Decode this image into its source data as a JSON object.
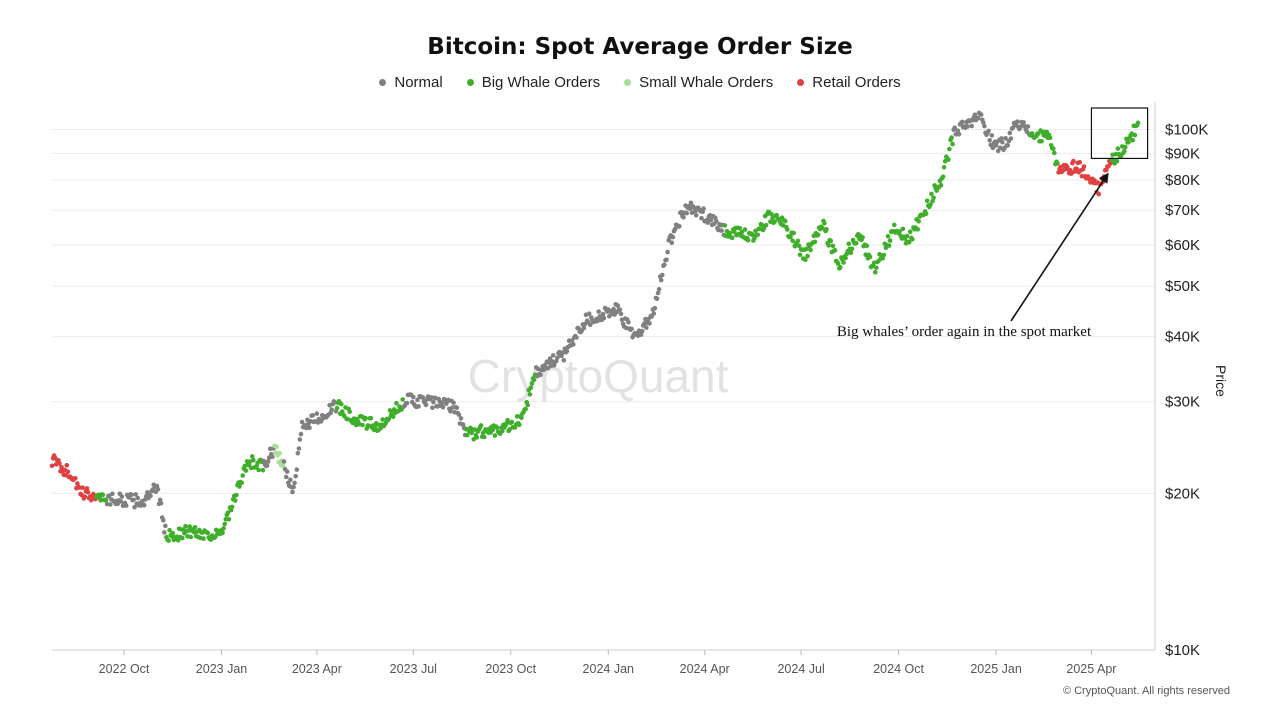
{
  "chart_data": {
    "type": "scatter",
    "title": "Bitcoin: Spot Average Order Size",
    "ylabel": "Price",
    "yscale": "log",
    "ylim": [
      10000,
      110000
    ],
    "xlim": [
      "2022-07-25",
      "2025-05-31"
    ],
    "x_ticks": [
      {
        "date": "2022-10-01",
        "label": "2022 Oct"
      },
      {
        "date": "2023-01-01",
        "label": "2023 Jan"
      },
      {
        "date": "2023-04-01",
        "label": "2023 Apr"
      },
      {
        "date": "2023-07-01",
        "label": "2023 Jul"
      },
      {
        "date": "2023-10-01",
        "label": "2023 Oct"
      },
      {
        "date": "2024-01-01",
        "label": "2024 Jan"
      },
      {
        "date": "2024-04-01",
        "label": "2024 Apr"
      },
      {
        "date": "2024-07-01",
        "label": "2024 Jul"
      },
      {
        "date": "2024-10-01",
        "label": "2024 Oct"
      },
      {
        "date": "2025-01-01",
        "label": "2025 Jan"
      },
      {
        "date": "2025-04-01",
        "label": "2025 Apr"
      }
    ],
    "y_ticks": [
      {
        "value": 10000,
        "label": "$10K"
      },
      {
        "value": 20000,
        "label": "$20K"
      },
      {
        "value": 30000,
        "label": "$30K"
      },
      {
        "value": 40000,
        "label": "$40K"
      },
      {
        "value": 50000,
        "label": "$50K"
      },
      {
        "value": 60000,
        "label": "$60K"
      },
      {
        "value": 70000,
        "label": "$70K"
      },
      {
        "value": 80000,
        "label": "$80K"
      },
      {
        "value": 90000,
        "label": "$90K"
      },
      {
        "value": 100000,
        "label": "$100K"
      }
    ],
    "legend_position": "top-center",
    "grid": true,
    "series": [
      {
        "name": "Normal",
        "color": "#808080"
      },
      {
        "name": "Big Whale Orders",
        "color": "#3fae2a"
      },
      {
        "name": "Small Whale Orders",
        "color": "#a6e09a"
      },
      {
        "name": "Retail Orders",
        "color": "#e04040"
      }
    ],
    "segments": [
      [
        "2022-07-25",
        23200,
        "Retail Orders"
      ],
      [
        "2022-08-15",
        21500,
        "Retail Orders"
      ],
      [
        "2022-08-20",
        20000,
        "Retail Orders"
      ],
      [
        "2022-09-05",
        19800,
        "Big Whale Orders"
      ],
      [
        "2022-09-15",
        19500,
        "Normal"
      ],
      [
        "2022-10-20",
        19300,
        "Normal"
      ],
      [
        "2022-11-01",
        20500,
        "Normal"
      ],
      [
        "2022-11-10",
        16500,
        "Big Whale Orders"
      ],
      [
        "2022-12-01",
        16900,
        "Big Whale Orders"
      ],
      [
        "2022-12-31",
        16600,
        "Big Whale Orders"
      ],
      [
        "2023-01-12",
        19000,
        "Big Whale Orders"
      ],
      [
        "2023-01-20",
        21500,
        "Big Whale Orders"
      ],
      [
        "2023-01-28",
        23000,
        "Big Whale Orders"
      ],
      [
        "2023-02-10",
        22500,
        "Normal"
      ],
      [
        "2023-02-20",
        24500,
        "Small Whale Orders"
      ],
      [
        "2023-03-01",
        22500,
        "Normal"
      ],
      [
        "2023-03-10",
        20000,
        "Normal"
      ],
      [
        "2023-03-18",
        27000,
        "Normal"
      ],
      [
        "2023-04-10",
        28500,
        "Normal"
      ],
      [
        "2023-04-20",
        29500,
        "Big Whale Orders"
      ],
      [
        "2023-05-10",
        27500,
        "Big Whale Orders"
      ],
      [
        "2023-06-01",
        26800,
        "Big Whale Orders"
      ],
      [
        "2023-06-22",
        30200,
        "Normal"
      ],
      [
        "2023-07-15",
        30000,
        "Normal"
      ],
      [
        "2023-08-10",
        29300,
        "Normal"
      ],
      [
        "2023-08-20",
        26000,
        "Big Whale Orders"
      ],
      [
        "2023-09-15",
        26500,
        "Big Whale Orders"
      ],
      [
        "2023-10-10",
        27500,
        "Big Whale Orders"
      ],
      [
        "2023-10-25",
        34000,
        "Normal"
      ],
      [
        "2023-11-20",
        37000,
        "Normal"
      ],
      [
        "2023-12-10",
        43000,
        "Normal"
      ],
      [
        "2024-01-10",
        45000,
        "Normal"
      ],
      [
        "2024-01-25",
        40000,
        "Normal"
      ],
      [
        "2024-02-10",
        43000,
        "Normal"
      ],
      [
        "2024-02-28",
        61000,
        "Normal"
      ],
      [
        "2024-03-14",
        71000,
        "Normal"
      ],
      [
        "2024-04-05",
        68000,
        "Normal"
      ],
      [
        "2024-04-20",
        64000,
        "Big Whale Orders"
      ],
      [
        "2024-05-15",
        62000,
        "Big Whale Orders"
      ],
      [
        "2024-06-01",
        68000,
        "Big Whale Orders"
      ],
      [
        "2024-06-15",
        66000,
        "Big Whale Orders"
      ],
      [
        "2024-07-05",
        57000,
        "Big Whale Orders"
      ],
      [
        "2024-07-20",
        66500,
        "Big Whale Orders"
      ],
      [
        "2024-08-05",
        55000,
        "Big Whale Orders"
      ],
      [
        "2024-08-25",
        63000,
        "Big Whale Orders"
      ],
      [
        "2024-09-08",
        54000,
        "Big Whale Orders"
      ],
      [
        "2024-09-28",
        65000,
        "Big Whale Orders"
      ],
      [
        "2024-10-10",
        61000,
        "Big Whale Orders"
      ],
      [
        "2024-10-29",
        72000,
        "Big Whale Orders"
      ],
      [
        "2024-11-10",
        80000,
        "Big Whale Orders"
      ],
      [
        "2024-11-22",
        98000,
        "Normal"
      ],
      [
        "2024-12-17",
        106000,
        "Normal"
      ],
      [
        "2024-12-30",
        93000,
        "Normal"
      ],
      [
        "2025-01-10",
        94000,
        "Normal"
      ],
      [
        "2025-01-20",
        104000,
        "Normal"
      ],
      [
        "2025-02-03",
        98000,
        "Big Whale Orders"
      ],
      [
        "2025-02-20",
        96000,
        "Big Whale Orders"
      ],
      [
        "2025-03-01",
        84000,
        "Retail Orders"
      ],
      [
        "2025-03-20",
        85000,
        "Retail Orders"
      ],
      [
        "2025-04-08",
        77000,
        "Retail Orders"
      ],
      [
        "2025-04-20",
        87000,
        "Big Whale Orders"
      ],
      [
        "2025-05-08",
        96000,
        "Big Whale Orders"
      ],
      [
        "2025-05-15",
        103000,
        "Big Whale Orders"
      ]
    ],
    "annotation": {
      "text": "Big whales’ order again in the spot market",
      "box_x": [
        "2025-04-01",
        "2025-05-24"
      ],
      "box_y": [
        88000,
        110000
      ],
      "arrow_to": [
        "2025-04-20",
        85000
      ]
    },
    "watermark": "CryptoQuant"
  },
  "footer": {
    "copyright": "© CryptoQuant. All rights reserved"
  }
}
